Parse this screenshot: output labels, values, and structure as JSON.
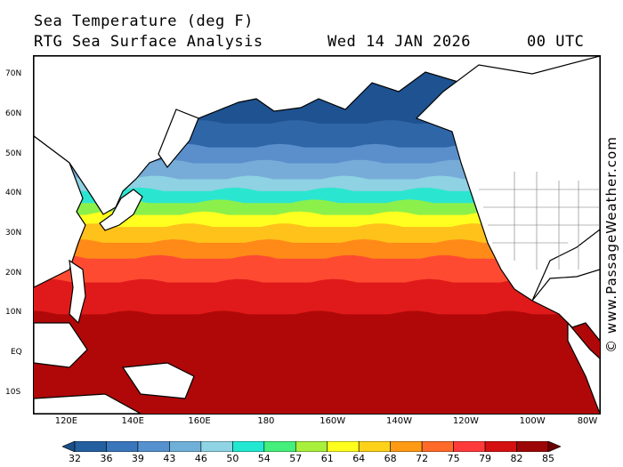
{
  "title": {
    "line1": "Sea Temperature (deg F)",
    "line2": "RTG Sea Surface Analysis",
    "date": "Wed 14 JAN 2026",
    "time": "00 UTC"
  },
  "credit": "© www.PassageWeather.com",
  "lat_labels": [
    "70N",
    "60N",
    "50N",
    "40N",
    "30N",
    "20N",
    "10N",
    "EQ",
    "10S"
  ],
  "lon_labels": [
    "120E",
    "140E",
    "160E",
    "180",
    "160W",
    "140W",
    "120W",
    "100W",
    "80W"
  ],
  "colorbar": {
    "labels": [
      "32",
      "36",
      "39",
      "43",
      "46",
      "50",
      "54",
      "57",
      "61",
      "64",
      "68",
      "72",
      "75",
      "79",
      "82",
      "85"
    ],
    "colors": [
      "#1a4f8a",
      "#245fa0",
      "#3a76bb",
      "#5691cf",
      "#6fb0d8",
      "#8fd4e4",
      "#22e8d2",
      "#44ef7c",
      "#a8f03c",
      "#ffff1e",
      "#ffd21a",
      "#ff9a14",
      "#ff6a28",
      "#ff3a3a",
      "#d41010",
      "#9c0606",
      "#6a0000"
    ]
  },
  "map": {
    "land_color": "#ffffff",
    "border_color": "#000000",
    "sst_bands": [
      {
        "lat": 65,
        "color": "#1e5290"
      },
      {
        "lat": 58,
        "color": "#2f66a8"
      },
      {
        "lat": 52,
        "color": "#5a8fcc"
      },
      {
        "lat": 48,
        "color": "#77acd8"
      },
      {
        "lat": 44,
        "color": "#8ed2e3"
      },
      {
        "lat": 41,
        "color": "#2ae6d0"
      },
      {
        "lat": 38,
        "color": "#8cf04a"
      },
      {
        "lat": 35,
        "color": "#ffff20"
      },
      {
        "lat": 32,
        "color": "#ffc21a"
      },
      {
        "lat": 28,
        "color": "#ff8a18"
      },
      {
        "lat": 24,
        "color": "#ff4a32"
      },
      {
        "lat": 18,
        "color": "#e01a1a"
      },
      {
        "lat": 10,
        "color": "#b00808"
      },
      {
        "lat": -20,
        "color": "#8a0202"
      }
    ]
  }
}
